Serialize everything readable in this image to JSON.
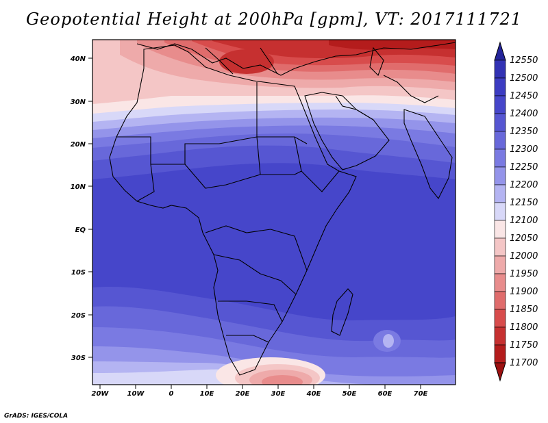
{
  "title": "Geopotential Height at 200hPa [gpm], VT: 2017111721",
  "credit": "GrADS: IGES/COLA",
  "map": {
    "lat_labels": [
      "40N",
      "30N",
      "20N",
      "10N",
      "EQ",
      "10S",
      "20S",
      "30S"
    ],
    "lon_labels": [
      "20W",
      "10W",
      "0",
      "10E",
      "20E",
      "30E",
      "40E",
      "50E",
      "60E",
      "70E"
    ]
  },
  "colorbar": {
    "levels": [
      "12550",
      "12500",
      "12450",
      "12400",
      "12350",
      "12300",
      "12250",
      "12200",
      "12150",
      "12100",
      "12050",
      "12000",
      "11950",
      "11900",
      "11850",
      "11800",
      "11750",
      "11700"
    ],
    "colors": [
      "#24249a",
      "#3232b4",
      "#3c3cc2",
      "#4646ca",
      "#5656d2",
      "#6868da",
      "#7a7ae2",
      "#9494ea",
      "#b4b4f2",
      "#d8d8f8",
      "#fae6e6",
      "#f4c6c6",
      "#eeaaaa",
      "#e88c8c",
      "#e06c6c",
      "#d84c4c",
      "#c63030",
      "#b41c1c",
      "#9c1010"
    ]
  }
}
